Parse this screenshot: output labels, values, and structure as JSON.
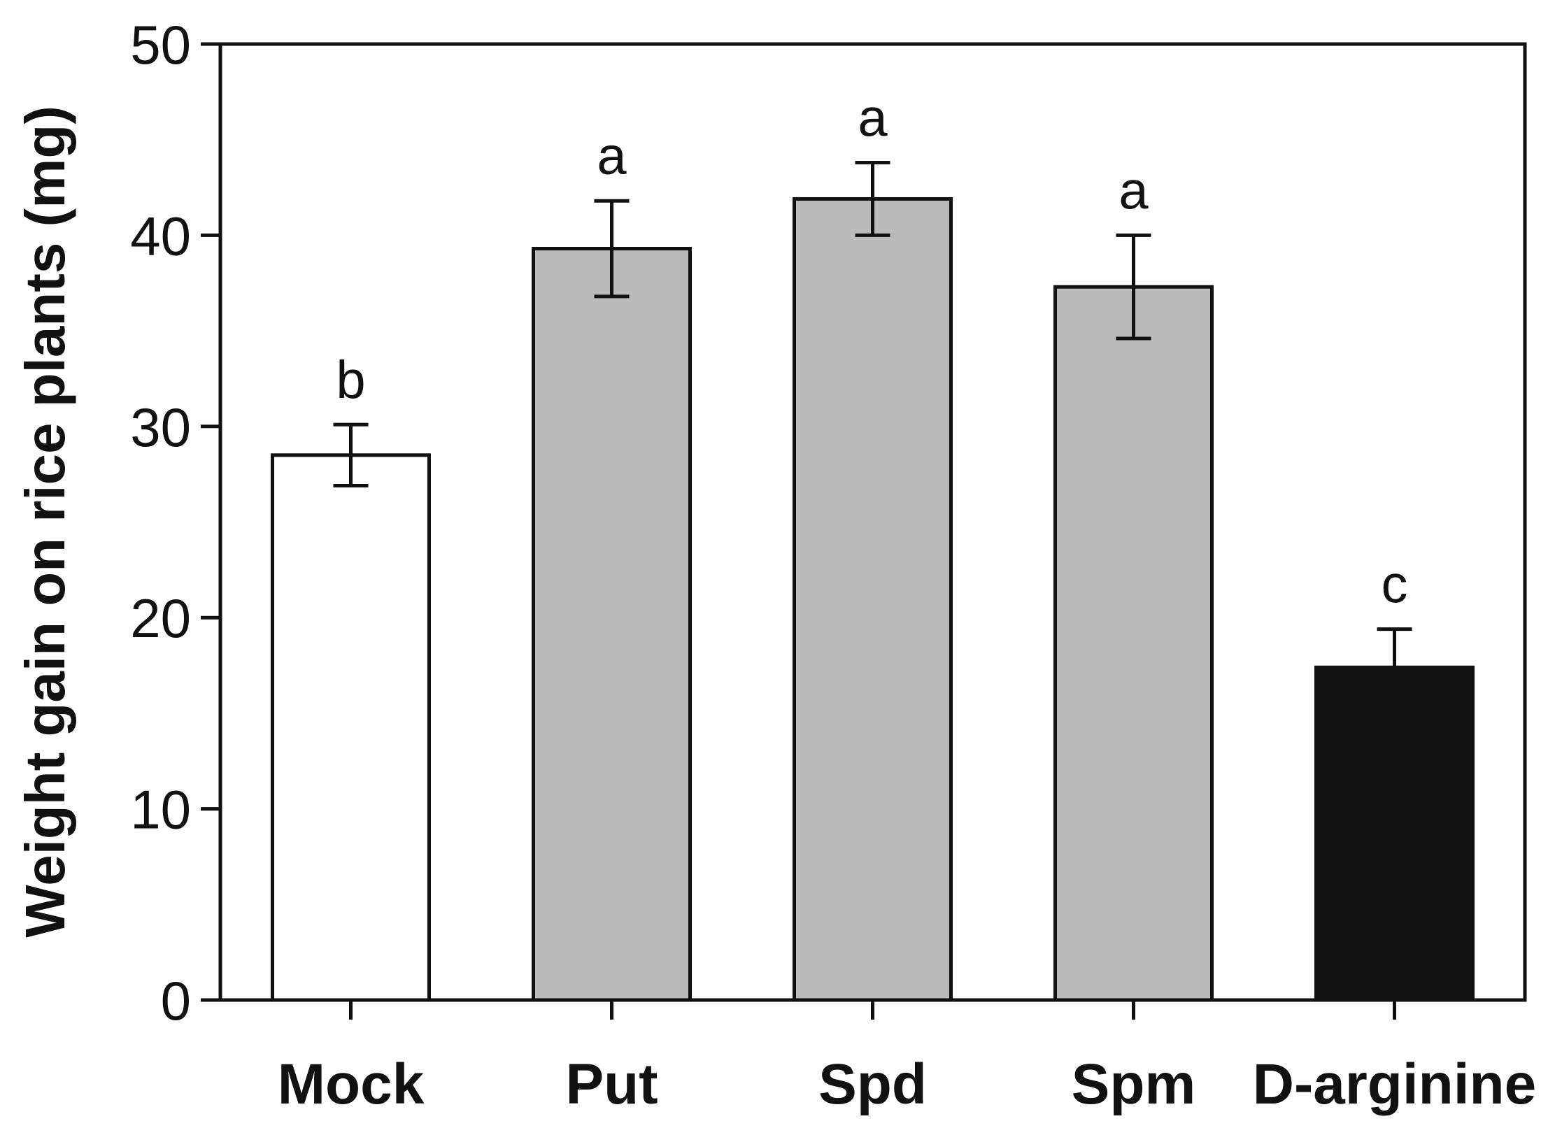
{
  "chart_data": {
    "type": "bar",
    "title": "",
    "xlabel": "",
    "ylabel": "Weight gain on rice plants (mg)",
    "ylim": [
      0,
      50
    ],
    "yticks": [
      0,
      10,
      20,
      30,
      40,
      50
    ],
    "grid": false,
    "categories": [
      "Mock",
      "Put",
      "Spd",
      "Spm",
      "D-arginine"
    ],
    "values": [
      28.5,
      39.3,
      41.9,
      37.3,
      17.4
    ],
    "errors": [
      1.6,
      2.5,
      1.9,
      2.7,
      2.0
    ],
    "significance": [
      "b",
      "a",
      "a",
      "a",
      "c"
    ],
    "colors": [
      "#ffffff",
      "#bbbbbb",
      "#bbbbbb",
      "#bbbbbb",
      "#111111"
    ],
    "error_bar_style": [
      "both",
      "both",
      "both",
      "both",
      "upper"
    ]
  }
}
